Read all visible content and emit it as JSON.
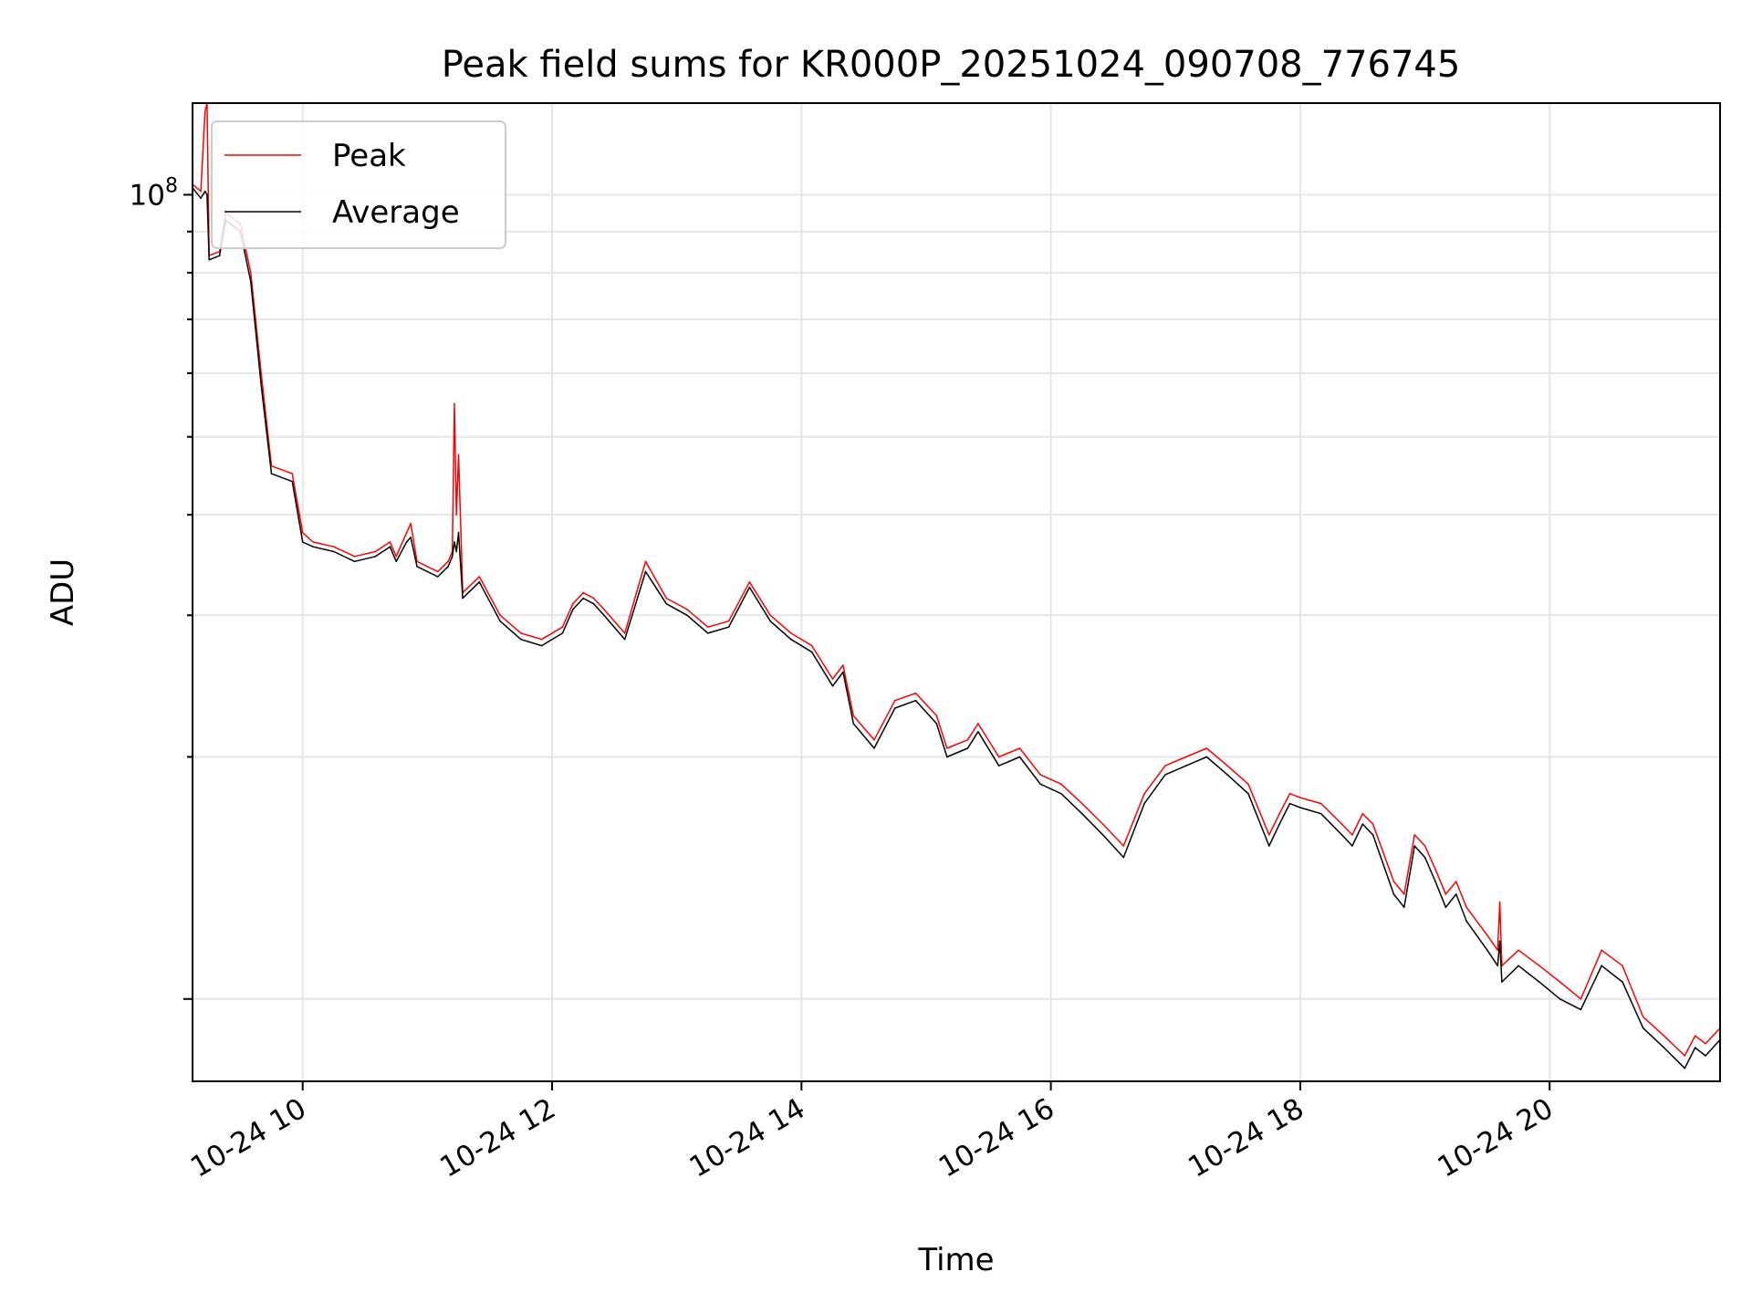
{
  "chart_data": {
    "type": "line",
    "title": "Peak field sums for KR000P_20251024_090708_776745",
    "xlabel": "Time",
    "ylabel": "ADU",
    "yscale": "log",
    "grid": true,
    "legend_position": "top-left",
    "x_ticks": [
      "10-24 10",
      "10-24 12",
      "10-24 14",
      "10-24 16",
      "10-24 18",
      "10-24 20"
    ],
    "y_tick_labels": [
      {
        "base": "10",
        "exp": "8"
      }
    ],
    "x_range": [
      "2025-10-24 09:07",
      "2025-10-24 21:22"
    ],
    "y_range": [
      7900000,
      130000000
    ],
    "colors": {
      "Peak": "#ff0000",
      "Average": "#000000"
    },
    "series": [
      {
        "name": "Peak",
        "points": [
          [
            "09:07",
            103000000
          ],
          [
            "09:11",
            101000000
          ],
          [
            "09:13",
            127000000
          ],
          [
            "09:14",
            130000000
          ],
          [
            "09:15",
            84000000
          ],
          [
            "09:20",
            85000000
          ],
          [
            "09:23",
            95000000
          ],
          [
            "09:30",
            92000000
          ],
          [
            "09:35",
            80000000
          ],
          [
            "09:40",
            60000000
          ],
          [
            "09:45",
            46000000
          ],
          [
            "09:55",
            45000000
          ],
          [
            "10:00",
            38000000
          ],
          [
            "10:05",
            37000000
          ],
          [
            "10:15",
            36500000
          ],
          [
            "10:25",
            35500000
          ],
          [
            "10:35",
            36000000
          ],
          [
            "10:42",
            37000000
          ],
          [
            "10:45",
            35500000
          ],
          [
            "10:50",
            38000000
          ],
          [
            "10:52",
            39000000
          ],
          [
            "10:55",
            35000000
          ],
          [
            "11:05",
            34000000
          ],
          [
            "11:10",
            35000000
          ],
          [
            "11:12",
            36000000
          ],
          [
            "11:13",
            55000000
          ],
          [
            "11:14",
            40000000
          ],
          [
            "11:15",
            47500000
          ],
          [
            "11:17",
            32000000
          ],
          [
            "11:25",
            33500000
          ],
          [
            "11:35",
            30000000
          ],
          [
            "11:45",
            28500000
          ],
          [
            "11:55",
            28000000
          ],
          [
            "12:05",
            29000000
          ],
          [
            "12:10",
            31000000
          ],
          [
            "12:15",
            32000000
          ],
          [
            "12:20",
            31500000
          ],
          [
            "12:25",
            30500000
          ],
          [
            "12:35",
            28500000
          ],
          [
            "12:45",
            35000000
          ],
          [
            "12:55",
            31500000
          ],
          [
            "13:05",
            30500000
          ],
          [
            "13:15",
            29000000
          ],
          [
            "13:25",
            29500000
          ],
          [
            "13:35",
            33000000
          ],
          [
            "13:45",
            30000000
          ],
          [
            "13:55",
            28500000
          ],
          [
            "14:05",
            27500000
          ],
          [
            "14:15",
            25000000
          ],
          [
            "14:20",
            26000000
          ],
          [
            "14:25",
            22500000
          ],
          [
            "14:35",
            21000000
          ],
          [
            "14:45",
            23500000
          ],
          [
            "14:55",
            24000000
          ],
          [
            "15:05",
            22500000
          ],
          [
            "15:10",
            20500000
          ],
          [
            "15:20",
            21000000
          ],
          [
            "15:25",
            22000000
          ],
          [
            "15:35",
            20000000
          ],
          [
            "15:45",
            20500000
          ],
          [
            "15:55",
            19000000
          ],
          [
            "16:05",
            18500000
          ],
          [
            "16:15",
            17500000
          ],
          [
            "16:25",
            16500000
          ],
          [
            "16:35",
            15500000
          ],
          [
            "16:45",
            18000000
          ],
          [
            "16:55",
            19500000
          ],
          [
            "17:05",
            20000000
          ],
          [
            "17:15",
            20500000
          ],
          [
            "17:25",
            19500000
          ],
          [
            "17:35",
            18500000
          ],
          [
            "17:45",
            16000000
          ],
          [
            "17:50",
            17000000
          ],
          [
            "17:55",
            18000000
          ],
          [
            "18:00",
            17800000
          ],
          [
            "18:10",
            17500000
          ],
          [
            "18:20",
            16500000
          ],
          [
            "18:25",
            16000000
          ],
          [
            "18:30",
            17000000
          ],
          [
            "18:35",
            16500000
          ],
          [
            "18:45",
            14000000
          ],
          [
            "18:50",
            13500000
          ],
          [
            "18:55",
            16000000
          ],
          [
            "19:00",
            15500000
          ],
          [
            "19:05",
            14500000
          ],
          [
            "19:10",
            13500000
          ],
          [
            "19:15",
            14000000
          ],
          [
            "19:20",
            13000000
          ],
          [
            "19:30",
            12000000
          ],
          [
            "19:35",
            11500000
          ],
          [
            "19:36",
            13200000
          ],
          [
            "19:37",
            11000000
          ],
          [
            "19:45",
            11500000
          ],
          [
            "19:55",
            11000000
          ],
          [
            "20:05",
            10500000
          ],
          [
            "20:15",
            10000000
          ],
          [
            "20:25",
            11500000
          ],
          [
            "20:35",
            11000000
          ],
          [
            "20:45",
            9500000
          ],
          [
            "20:55",
            9000000
          ],
          [
            "21:05",
            8500000
          ],
          [
            "21:10",
            9000000
          ],
          [
            "21:15",
            8800000
          ],
          [
            "21:22",
            9200000
          ]
        ]
      },
      {
        "name": "Average",
        "points": [
          [
            "09:07",
            102000000
          ],
          [
            "09:11",
            99000000
          ],
          [
            "09:13",
            101000000
          ],
          [
            "09:14",
            100000000
          ],
          [
            "09:15",
            83000000
          ],
          [
            "09:20",
            84000000
          ],
          [
            "09:23",
            93000000
          ],
          [
            "09:30",
            90000000
          ],
          [
            "09:35",
            78000000
          ],
          [
            "09:40",
            58000000
          ],
          [
            "09:45",
            45000000
          ],
          [
            "09:55",
            44000000
          ],
          [
            "10:00",
            37000000
          ],
          [
            "10:05",
            36500000
          ],
          [
            "10:15",
            36000000
          ],
          [
            "10:25",
            35000000
          ],
          [
            "10:35",
            35500000
          ],
          [
            "10:42",
            36500000
          ],
          [
            "10:45",
            35000000
          ],
          [
            "10:50",
            37000000
          ],
          [
            "10:52",
            37500000
          ],
          [
            "10:55",
            34500000
          ],
          [
            "11:05",
            33500000
          ],
          [
            "11:10",
            34500000
          ],
          [
            "11:12",
            35500000
          ],
          [
            "11:13",
            37000000
          ],
          [
            "11:14",
            36000000
          ],
          [
            "11:15",
            38000000
          ],
          [
            "11:17",
            31500000
          ],
          [
            "11:25",
            33000000
          ],
          [
            "11:35",
            29500000
          ],
          [
            "11:45",
            28000000
          ],
          [
            "11:55",
            27500000
          ],
          [
            "12:05",
            28500000
          ],
          [
            "12:10",
            30500000
          ],
          [
            "12:15",
            31500000
          ],
          [
            "12:20",
            31000000
          ],
          [
            "12:25",
            30000000
          ],
          [
            "12:35",
            28000000
          ],
          [
            "12:45",
            34000000
          ],
          [
            "12:55",
            31000000
          ],
          [
            "13:05",
            30000000
          ],
          [
            "13:15",
            28500000
          ],
          [
            "13:25",
            29000000
          ],
          [
            "13:35",
            32500000
          ],
          [
            "13:45",
            29500000
          ],
          [
            "13:55",
            28000000
          ],
          [
            "14:05",
            27000000
          ],
          [
            "14:15",
            24500000
          ],
          [
            "14:20",
            25500000
          ],
          [
            "14:25",
            22000000
          ],
          [
            "14:35",
            20500000
          ],
          [
            "14:45",
            23000000
          ],
          [
            "14:55",
            23500000
          ],
          [
            "15:05",
            22000000
          ],
          [
            "15:10",
            20000000
          ],
          [
            "15:20",
            20500000
          ],
          [
            "15:25",
            21500000
          ],
          [
            "15:35",
            19500000
          ],
          [
            "15:45",
            20000000
          ],
          [
            "15:55",
            18500000
          ],
          [
            "16:05",
            18000000
          ],
          [
            "16:15",
            17000000
          ],
          [
            "16:25",
            16000000
          ],
          [
            "16:35",
            15000000
          ],
          [
            "16:45",
            17500000
          ],
          [
            "16:55",
            19000000
          ],
          [
            "17:05",
            19500000
          ],
          [
            "17:15",
            20000000
          ],
          [
            "17:25",
            19000000
          ],
          [
            "17:35",
            18000000
          ],
          [
            "17:45",
            15500000
          ],
          [
            "17:50",
            16500000
          ],
          [
            "17:55",
            17500000
          ],
          [
            "18:00",
            17300000
          ],
          [
            "18:10",
            17000000
          ],
          [
            "18:20",
            16000000
          ],
          [
            "18:25",
            15500000
          ],
          [
            "18:30",
            16500000
          ],
          [
            "18:35",
            16000000
          ],
          [
            "18:45",
            13500000
          ],
          [
            "18:50",
            13000000
          ],
          [
            "18:55",
            15500000
          ],
          [
            "19:00",
            15000000
          ],
          [
            "19:05",
            14000000
          ],
          [
            "19:10",
            13000000
          ],
          [
            "19:15",
            13500000
          ],
          [
            "19:20",
            12500000
          ],
          [
            "19:30",
            11500000
          ],
          [
            "19:35",
            11000000
          ],
          [
            "19:36",
            11800000
          ],
          [
            "19:37",
            10500000
          ],
          [
            "19:45",
            11000000
          ],
          [
            "19:55",
            10500000
          ],
          [
            "20:05",
            10000000
          ],
          [
            "20:15",
            9700000
          ],
          [
            "20:25",
            11000000
          ],
          [
            "20:35",
            10500000
          ],
          [
            "20:45",
            9200000
          ],
          [
            "20:55",
            8700000
          ],
          [
            "21:05",
            8200000
          ],
          [
            "21:10",
            8700000
          ],
          [
            "21:15",
            8500000
          ],
          [
            "21:22",
            8900000
          ]
        ]
      }
    ]
  }
}
